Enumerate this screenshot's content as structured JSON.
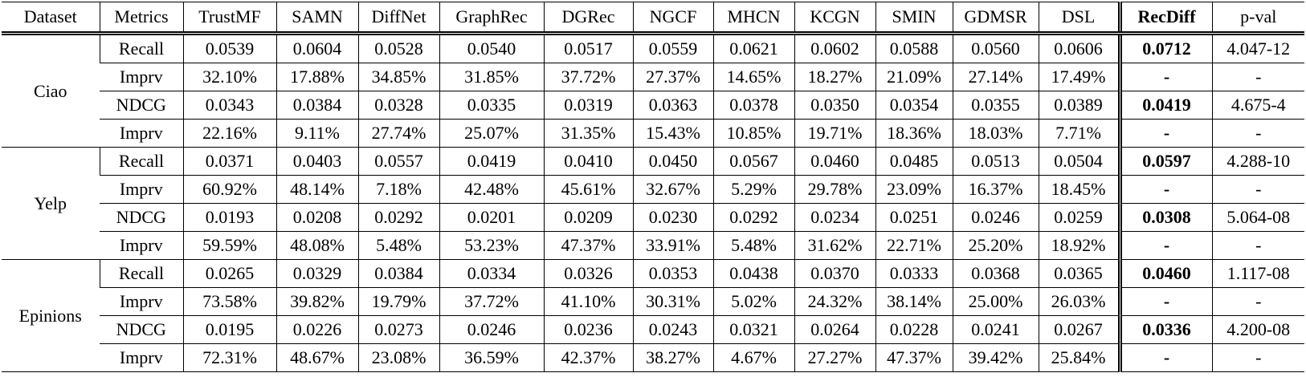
{
  "header": {
    "columns": [
      "Dataset",
      "Metrics",
      "TrustMF",
      "SAMN",
      "DiffNet",
      "GraphRec",
      "DGRec",
      "NGCF",
      "MHCN",
      "KCGN",
      "SMIN",
      "GDMSR",
      "DSL",
      "RecDiff",
      "p-val"
    ]
  },
  "groups": [
    {
      "dataset": "Ciao",
      "rows": [
        {
          "metric": "Recall",
          "cells": [
            "0.0539",
            "0.0604",
            "0.0528",
            "0.0540",
            "0.0517",
            "0.0559",
            "0.0621",
            "0.0602",
            "0.0588",
            "0.0560",
            "0.0606",
            "0.0712",
            "4.047-12"
          ]
        },
        {
          "metric": "Imprv",
          "cells": [
            "32.10%",
            "17.88%",
            "34.85%",
            "31.85%",
            "37.72%",
            "27.37%",
            "14.65%",
            "18.27%",
            "21.09%",
            "27.14%",
            "17.49%",
            "-",
            "-"
          ]
        },
        {
          "metric": "NDCG",
          "cells": [
            "0.0343",
            "0.0384",
            "0.0328",
            "0.0335",
            "0.0319",
            "0.0363",
            "0.0378",
            "0.0350",
            "0.0354",
            "0.0355",
            "0.0389",
            "0.0419",
            "4.675-4"
          ]
        },
        {
          "metric": "Imprv",
          "cells": [
            "22.16%",
            "9.11%",
            "27.74%",
            "25.07%",
            "31.35%",
            "15.43%",
            "10.85%",
            "19.71%",
            "18.36%",
            "18.03%",
            "7.71%",
            "-",
            "-"
          ]
        }
      ]
    },
    {
      "dataset": "Yelp",
      "rows": [
        {
          "metric": "Recall",
          "cells": [
            "0.0371",
            "0.0403",
            "0.0557",
            "0.0419",
            "0.0410",
            "0.0450",
            "0.0567",
            "0.0460",
            "0.0485",
            "0.0513",
            "0.0504",
            "0.0597",
            "4.288-10"
          ]
        },
        {
          "metric": "Imprv",
          "cells": [
            "60.92%",
            "48.14%",
            "7.18%",
            "42.48%",
            "45.61%",
            "32.67%",
            "5.29%",
            "29.78%",
            "23.09%",
            "16.37%",
            "18.45%",
            "-",
            "-"
          ]
        },
        {
          "metric": "NDCG",
          "cells": [
            "0.0193",
            "0.0208",
            "0.0292",
            "0.0201",
            "0.0209",
            "0.0230",
            "0.0292",
            "0.0234",
            "0.0251",
            "0.0246",
            "0.0259",
            "0.0308",
            "5.064-08"
          ]
        },
        {
          "metric": "Imprv",
          "cells": [
            "59.59%",
            "48.08%",
            "5.48%",
            "53.23%",
            "47.37%",
            "33.91%",
            "5.48%",
            "31.62%",
            "22.71%",
            "25.20%",
            "18.92%",
            "-",
            "-"
          ]
        }
      ]
    },
    {
      "dataset": "Epinions",
      "rows": [
        {
          "metric": "Recall",
          "cells": [
            "0.0265",
            "0.0329",
            "0.0384",
            "0.0334",
            "0.0326",
            "0.0353",
            "0.0438",
            "0.0370",
            "0.0333",
            "0.0368",
            "0.0365",
            "0.0460",
            "1.117-08"
          ]
        },
        {
          "metric": "Imprv",
          "cells": [
            "73.58%",
            "39.82%",
            "19.79%",
            "37.72%",
            "41.10%",
            "30.31%",
            "5.02%",
            "24.32%",
            "38.14%",
            "25.00%",
            "26.03%",
            "-",
            "-"
          ]
        },
        {
          "metric": "NDCG",
          "cells": [
            "0.0195",
            "0.0226",
            "0.0273",
            "0.0246",
            "0.0236",
            "0.0243",
            "0.0321",
            "0.0264",
            "0.0228",
            "0.0241",
            "0.0267",
            "0.0336",
            "4.200-08"
          ]
        },
        {
          "metric": "Imprv",
          "cells": [
            "72.31%",
            "48.67%",
            "23.08%",
            "36.59%",
            "42.37%",
            "38.27%",
            "4.67%",
            "27.27%",
            "47.37%",
            "39.42%",
            "25.84%",
            "-",
            "-"
          ]
        }
      ]
    }
  ]
}
